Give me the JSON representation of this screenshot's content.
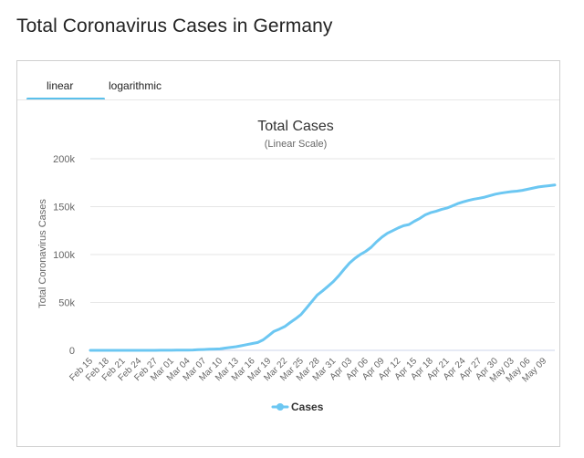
{
  "page": {
    "title": "Total Coronavirus Cases in Germany"
  },
  "tabs": [
    {
      "label": "linear",
      "active": true
    },
    {
      "label": "logarithmic",
      "active": false
    }
  ],
  "colors": {
    "accent": "#5bc0eb",
    "series": "#6cc7f2"
  },
  "chart_data": {
    "type": "line",
    "title": "Total Cases",
    "subtitle": "(Linear Scale)",
    "ylabel": "Total Coronavirus Cases",
    "xlabel": "",
    "ylim": [
      0,
      200000
    ],
    "yticks": [
      {
        "value": 0,
        "label": "0"
      },
      {
        "value": 50000,
        "label": "50k"
      },
      {
        "value": 100000,
        "label": "100k"
      },
      {
        "value": 150000,
        "label": "150k"
      },
      {
        "value": 200000,
        "label": "200k"
      }
    ],
    "grid": true,
    "legend": "bottom-center",
    "x": [
      "Feb 15",
      "Feb 16",
      "Feb 17",
      "Feb 18",
      "Feb 19",
      "Feb 20",
      "Feb 21",
      "Feb 22",
      "Feb 23",
      "Feb 24",
      "Feb 25",
      "Feb 26",
      "Feb 27",
      "Feb 28",
      "Feb 29",
      "Mar 01",
      "Mar 02",
      "Mar 03",
      "Mar 04",
      "Mar 05",
      "Mar 06",
      "Mar 07",
      "Mar 08",
      "Mar 09",
      "Mar 10",
      "Mar 11",
      "Mar 12",
      "Mar 13",
      "Mar 14",
      "Mar 15",
      "Mar 16",
      "Mar 17",
      "Mar 18",
      "Mar 19",
      "Mar 20",
      "Mar 21",
      "Mar 22",
      "Mar 23",
      "Mar 24",
      "Mar 25",
      "Mar 26",
      "Mar 27",
      "Mar 28",
      "Mar 29",
      "Mar 30",
      "Mar 31",
      "Apr 01",
      "Apr 02",
      "Apr 03",
      "Apr 04",
      "Apr 05",
      "Apr 06",
      "Apr 07",
      "Apr 08",
      "Apr 09",
      "Apr 10",
      "Apr 11",
      "Apr 12",
      "Apr 13",
      "Apr 14",
      "Apr 15",
      "Apr 16",
      "Apr 17",
      "Apr 18",
      "Apr 19",
      "Apr 20",
      "Apr 21",
      "Apr 22",
      "Apr 23",
      "Apr 24",
      "Apr 25",
      "Apr 26",
      "Apr 27",
      "Apr 28",
      "Apr 29",
      "Apr 30",
      "May 01",
      "May 02",
      "May 03",
      "May 04",
      "May 05",
      "May 06",
      "May 07",
      "May 08",
      "May 09",
      "May 10",
      "May 11"
    ],
    "xtick_labels": [
      "Feb 15",
      "Feb 18",
      "Feb 21",
      "Feb 24",
      "Feb 27",
      "Mar 01",
      "Mar 04",
      "Mar 07",
      "Mar 10",
      "Mar 13",
      "Mar 16",
      "Mar 19",
      "Mar 22",
      "Mar 25",
      "Mar 28",
      "Mar 31",
      "Apr 03",
      "Apr 06",
      "Apr 09",
      "Apr 12",
      "Apr 15",
      "Apr 18",
      "Apr 21",
      "Apr 24",
      "Apr 27",
      "Apr 30",
      "May 03",
      "May 06",
      "May 09"
    ],
    "series": [
      {
        "name": "Cases",
        "values": [
          16,
          16,
          16,
          16,
          16,
          16,
          16,
          16,
          16,
          16,
          17,
          27,
          46,
          48,
          79,
          130,
          159,
          196,
          262,
          400,
          684,
          847,
          1112,
          1296,
          1567,
          2369,
          3062,
          3795,
          4838,
          6012,
          7156,
          8198,
          10999,
          15320,
          19848,
          22213,
          24873,
          29056,
          32986,
          37323,
          43938,
          50871,
          57695,
          62095,
          66885,
          71808,
          77872,
          84794,
          91159,
          96092,
          100123,
          103375,
          107663,
          113296,
          118181,
          122171,
          124908,
          127854,
          130072,
          131359,
          134753,
          137698,
          141397,
          143724,
          145184,
          147065,
          148453,
          150648,
          153129,
          154999,
          156513,
          157770,
          158758,
          159912,
          161539,
          163009,
          164077,
          164967,
          165745,
          166152,
          167007,
          168162,
          169430,
          170588,
          171324,
          171879,
          172576
        ]
      }
    ]
  }
}
